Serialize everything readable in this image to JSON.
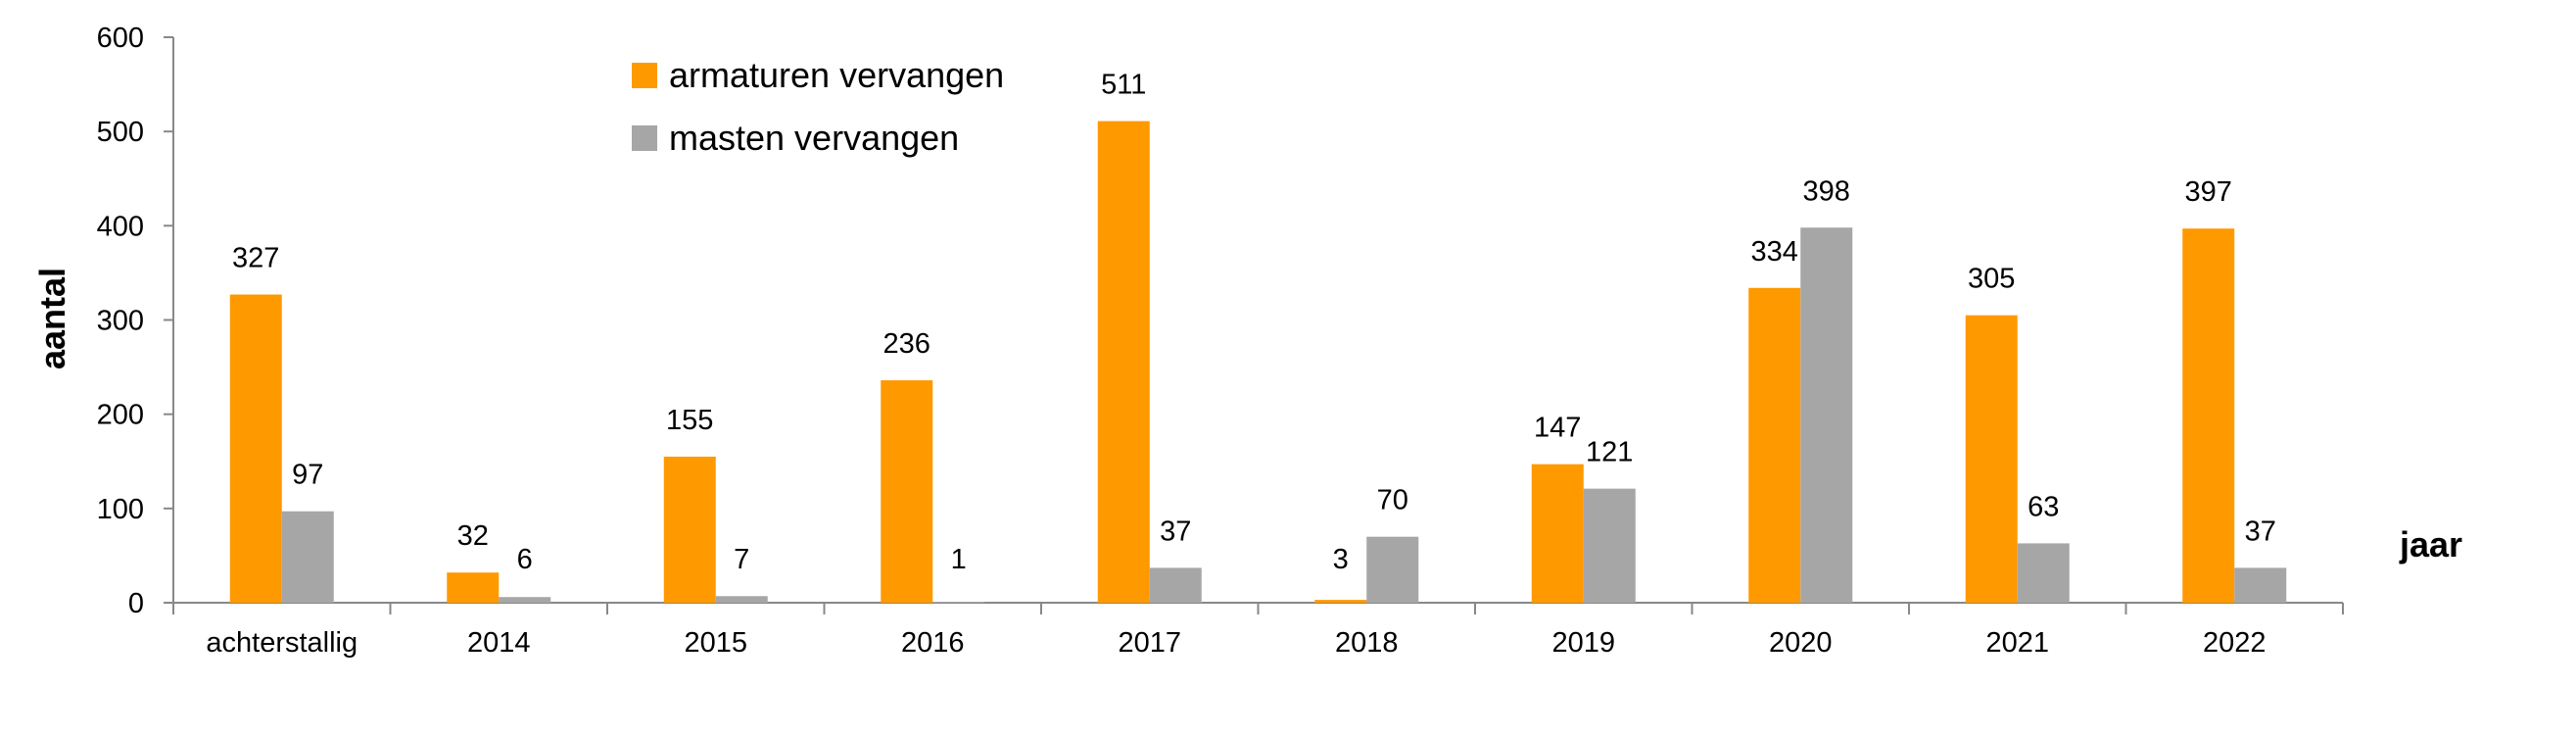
{
  "chart_data": {
    "type": "bar",
    "title": "",
    "xlabel": "jaar",
    "ylabel": "aantal",
    "ylim": [
      0,
      600
    ],
    "yticks": [
      0,
      100,
      200,
      300,
      400,
      500,
      600
    ],
    "grid": false,
    "legend_position": "top-center",
    "categories": [
      "achterstallig",
      "2014",
      "2015",
      "2016",
      "2017",
      "2018",
      "2019",
      "2020",
      "2021",
      "2022"
    ],
    "series": [
      {
        "name": "armaturen vervangen",
        "color": "#ff9900",
        "values": [
          327,
          32,
          155,
          236,
          511,
          3,
          147,
          334,
          305,
          397
        ]
      },
      {
        "name": "masten vervangen",
        "color": "#a6a6a6",
        "values": [
          97,
          6,
          7,
          1,
          37,
          70,
          121,
          398,
          63,
          37
        ]
      }
    ],
    "data_labels": [
      [
        "327",
        "32",
        "155",
        "236",
        "511",
        "3",
        "147",
        "334",
        "305",
        "397"
      ],
      [
        "97",
        "6",
        "7",
        "1",
        "37",
        "70",
        "121",
        "398",
        "63",
        "37"
      ]
    ]
  }
}
